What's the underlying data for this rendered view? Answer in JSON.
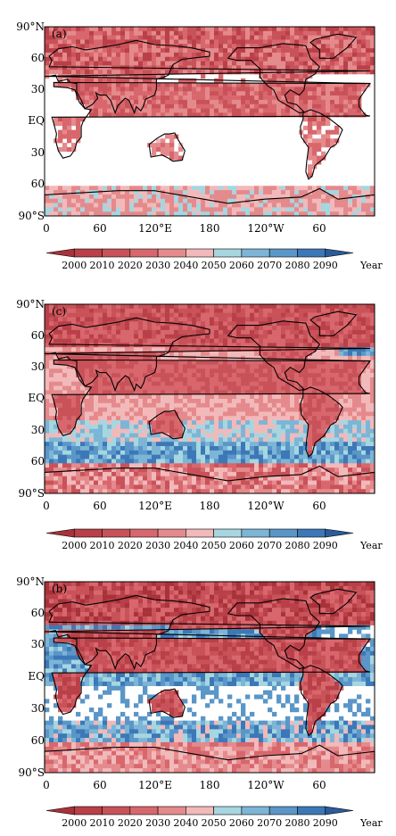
{
  "panels": [
    {
      "id": "a",
      "label": "(a)",
      "pattern": "a"
    },
    {
      "id": "c",
      "label": "(c)",
      "pattern": "c"
    },
    {
      "id": "b",
      "label": "(b)",
      "pattern": "b"
    }
  ],
  "lat_labels": [
    "90°N",
    "60",
    "30",
    "EQ",
    "30",
    "60",
    "90°S"
  ],
  "lon_labels": [
    "0",
    "60",
    "120°E",
    "180",
    "120°W",
    "60"
  ],
  "colorbar": {
    "ticks": [
      "2000",
      "2010",
      "2020",
      "2030",
      "2040",
      "2050",
      "2060",
      "2070",
      "2080",
      "2090"
    ],
    "unit": "Year",
    "colors": [
      "#a8323a",
      "#b94048",
      "#c95259",
      "#d8676d",
      "#e58a8c",
      "#f2b9ba",
      "#a6d6e0",
      "#7cb5d6",
      "#5a96c8",
      "#3c78b7",
      "#2a5c9d"
    ]
  },
  "colors": {
    "background_no_data": "#ffffff",
    "coast": "#000000"
  }
}
